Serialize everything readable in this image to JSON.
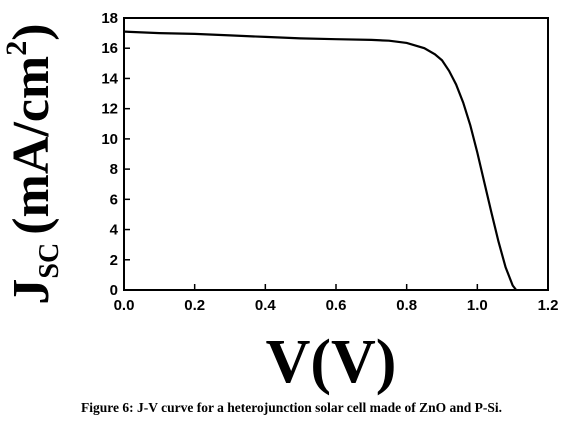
{
  "chart_data": {
    "type": "line",
    "xlabel": "V(V)",
    "ylabel_main": "J",
    "ylabel_sub": "SC",
    "ylabel_unit": "(mA/cm",
    "ylabel_sup": "2",
    "ylabel_close": ")",
    "xlim": [
      0.0,
      1.2
    ],
    "ylim": [
      0,
      18
    ],
    "xticks": [
      "0.0",
      "0.2",
      "0.4",
      "0.6",
      "0.8",
      "1.0",
      "1.2"
    ],
    "yticks": [
      "0",
      "2",
      "4",
      "6",
      "8",
      "10",
      "12",
      "14",
      "16",
      "18"
    ],
    "grid": false,
    "series": [
      {
        "x": [
          0.0,
          0.1,
          0.2,
          0.3,
          0.4,
          0.5,
          0.6,
          0.7,
          0.75,
          0.8,
          0.85,
          0.88,
          0.9,
          0.92,
          0.94,
          0.96,
          0.98,
          1.0,
          1.02,
          1.04,
          1.06,
          1.08,
          1.1,
          1.11
        ],
        "y": [
          17.1,
          17.0,
          16.95,
          16.85,
          16.75,
          16.65,
          16.6,
          16.55,
          16.5,
          16.35,
          16.0,
          15.6,
          15.2,
          14.5,
          13.6,
          12.4,
          10.9,
          9.1,
          7.1,
          5.1,
          3.2,
          1.5,
          0.3,
          0.0
        ]
      }
    ]
  },
  "caption": "Figure 6: J-V curve for a heterojunction solar cell made of ZnO and P-Si."
}
